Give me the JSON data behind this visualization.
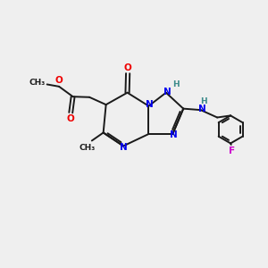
{
  "bg_color": "#efefef",
  "bond_color": "#1a1a1a",
  "N_color": "#0000ee",
  "O_color": "#ee0000",
  "F_color": "#cc00cc",
  "H_color": "#3a8a8a",
  "figsize": [
    3.0,
    3.0
  ],
  "dpi": 100,
  "xlim": [
    0,
    10
  ],
  "ylim": [
    0,
    10
  ],
  "lw": 1.4,
  "fs": 7.5,
  "fs_small": 6.5
}
